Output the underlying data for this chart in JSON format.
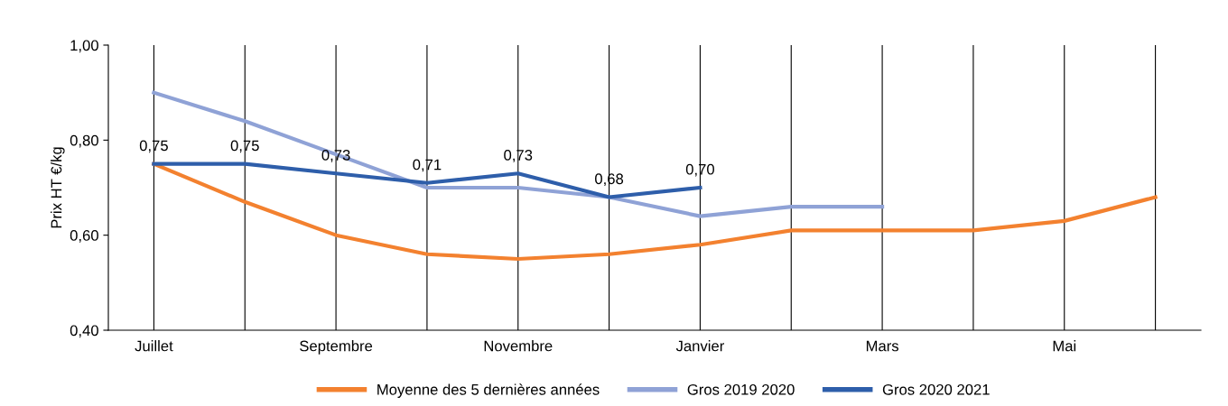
{
  "chart_data": {
    "type": "line",
    "ylabel": "Prix HT €/kg",
    "categories": [
      "Juillet",
      null,
      "Septembre",
      null,
      "Novembre",
      null,
      "Janvier",
      null,
      "Mars",
      null,
      "Mai",
      null
    ],
    "series": [
      {
        "name": "Moyenne des 5 dernières années",
        "color": "#f3812f",
        "values": [
          0.75,
          0.67,
          0.6,
          0.56,
          0.55,
          0.56,
          0.58,
          0.61,
          0.61,
          0.61,
          0.63,
          0.68
        ]
      },
      {
        "name": "Gros 2019 2020",
        "color": "#8fa2d6",
        "values": [
          0.9,
          0.84,
          0.77,
          0.7,
          0.7,
          0.68,
          0.64,
          0.66,
          0.66,
          null,
          null,
          null
        ]
      },
      {
        "name": "Gros 2020 2021",
        "color": "#2e5eaa",
        "values": [
          0.75,
          0.75,
          0.73,
          0.71,
          0.73,
          0.68,
          0.7,
          null,
          null,
          null,
          null,
          null
        ],
        "value_labels": [
          "0,75",
          "0,75",
          "0,73",
          "0,71",
          "0,73",
          "0,68",
          "0,70",
          null,
          null,
          null,
          null,
          null
        ]
      }
    ],
    "ylim": [
      0.4,
      1.0
    ],
    "yticks": [
      {
        "value": 0.4,
        "label": "0,40"
      },
      {
        "value": 0.6,
        "label": "0,60"
      },
      {
        "value": 0.8,
        "label": "0,80"
      },
      {
        "value": 1.0,
        "label": "1,00"
      }
    ],
    "grid": "x",
    "legend": "bottom",
    "marker": "none",
    "line_style": "solid"
  }
}
